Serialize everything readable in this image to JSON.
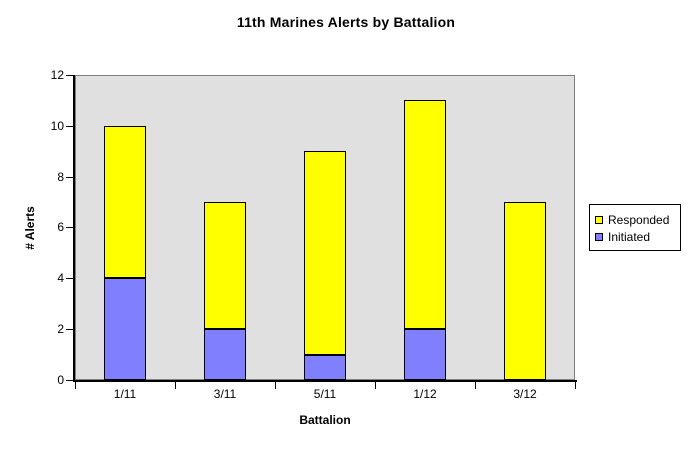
{
  "chart_data": {
    "type": "bar",
    "stacked": true,
    "title": "11th Marines Alerts by Battalion",
    "xlabel": "Battalion",
    "ylabel": "# Alerts",
    "categories": [
      "1/11",
      "3/11",
      "5/11",
      "1/12",
      "3/12"
    ],
    "series": [
      {
        "name": "Initiated",
        "color": "#8080ff",
        "values": [
          4,
          2,
          1,
          2,
          0
        ]
      },
      {
        "name": "Responded",
        "color": "#ffff00",
        "values": [
          6,
          5,
          8,
          9,
          7
        ]
      }
    ],
    "totals": [
      10,
      7,
      9,
      11,
      7
    ],
    "ylim": [
      0,
      12
    ],
    "yticks": [
      0,
      2,
      4,
      6,
      8,
      10,
      12
    ],
    "grid": false,
    "legend_position": "right",
    "plot_background": "#e0e0e0",
    "plot_border_color": "#808080",
    "axis_color": "#000000"
  },
  "legend": {
    "items": [
      {
        "label": "Responded",
        "color": "#ffff00"
      },
      {
        "label": "Initiated",
        "color": "#8080ff"
      }
    ]
  }
}
